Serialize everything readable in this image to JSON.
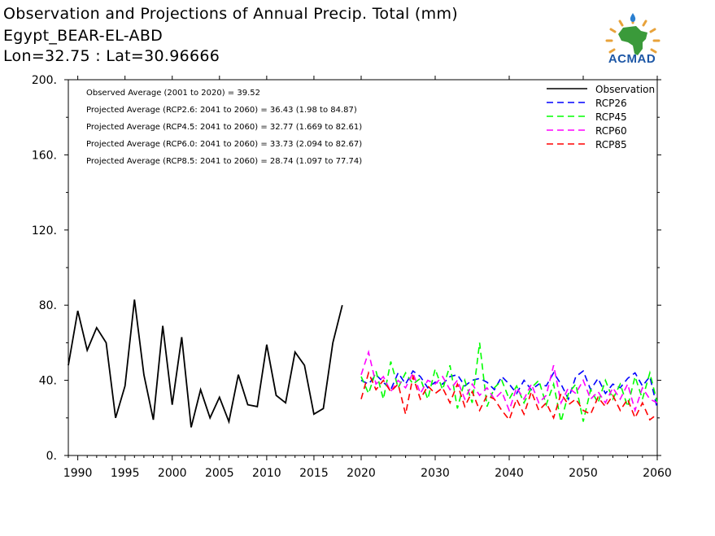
{
  "header": {
    "title": "Observation and Projections of Annual Precip. Total (mm)",
    "location": "Egypt_BEAR-EL-ABD",
    "coords": "Lon=32.75 : Lat=30.96666"
  },
  "logo": {
    "text": "ACMAD",
    "colors": {
      "africa": "#3a9a3a",
      "rays": "#e8a23a",
      "text": "#1d57a6",
      "drop": "#2a7fd0"
    }
  },
  "chart_data": {
    "type": "line",
    "title": "Observation and Projections of Annual Precip. Total (mm)",
    "xlabel": "",
    "ylabel": "",
    "xlim": [
      1989,
      2060
    ],
    "ylim": [
      0,
      200
    ],
    "x_ticks": [
      "1990",
      "1995",
      "2000",
      "2005",
      "2010",
      "2015",
      "2020",
      "2030",
      "2040",
      "2050",
      "2060"
    ],
    "y_ticks": [
      "0.",
      "40.",
      "80.",
      "120.",
      "160.",
      "200."
    ],
    "grid": false,
    "legend_position": "top-right",
    "annotations": [
      "Observed Average (2001 to 2020) = 39.52",
      "Projected Average (RCP2.6: 2041 to 2060) = 36.43 (1.98 to 84.87)",
      "Projected Average (RCP4.5: 2041 to 2060) = 32.77 (1.669 to 82.61)",
      "Projected Average (RCP6.0: 2041 to 2060) = 33.73 (2.094 to 82.67)",
      "Projected Average (RCP8.5: 2041 to 2060) = 28.74 (1.097 to 77.74)"
    ],
    "series": [
      {
        "name": "Observation",
        "color": "#000000",
        "dashed": false,
        "x": [
          1989,
          1990,
          1991,
          1992,
          1993,
          1994,
          1995,
          1996,
          1997,
          1998,
          1999,
          2000,
          2001,
          2002,
          2003,
          2004,
          2005,
          2006,
          2007,
          2008,
          2009,
          2010,
          2011,
          2012,
          2013,
          2014,
          2015,
          2016,
          2017,
          2018,
          2019,
          2020
        ],
        "values": [
          48,
          77,
          56,
          68,
          60,
          20,
          37,
          83,
          43,
          19,
          69,
          27,
          63,
          15,
          35,
          20,
          31,
          18,
          43,
          27,
          26,
          59,
          32,
          28,
          55,
          48,
          22,
          25,
          60,
          80,
          null,
          null
        ]
      },
      {
        "name": "RCP26",
        "color": "#0000ff",
        "dashed": true,
        "x": [
          2020,
          2021,
          2022,
          2023,
          2024,
          2025,
          2026,
          2027,
          2028,
          2029,
          2030,
          2031,
          2032,
          2033,
          2034,
          2035,
          2036,
          2037,
          2038,
          2039,
          2040,
          2041,
          2042,
          2043,
          2044,
          2045,
          2046,
          2047,
          2048,
          2049,
          2050,
          2051,
          2052,
          2053,
          2054,
          2055,
          2056,
          2057,
          2058,
          2059,
          2060
        ],
        "values": [
          40,
          38,
          43,
          39,
          35,
          44,
          38,
          45,
          42,
          36,
          39,
          38,
          42,
          43,
          37,
          40,
          41,
          39,
          35,
          42,
          38,
          33,
          40,
          35,
          38,
          37,
          44,
          38,
          30,
          42,
          45,
          35,
          41,
          33,
          38,
          36,
          41,
          44,
          37,
          42,
          25
        ]
      },
      {
        "name": "RCP45",
        "color": "#00ff00",
        "dashed": true,
        "x": [
          2020,
          2021,
          2022,
          2023,
          2024,
          2025,
          2026,
          2027,
          2028,
          2029,
          2030,
          2031,
          2032,
          2033,
          2034,
          2035,
          2036,
          2037,
          2038,
          2039,
          2040,
          2041,
          2042,
          2043,
          2044,
          2045,
          2046,
          2047,
          2048,
          2049,
          2050,
          2051,
          2052,
          2053,
          2054,
          2055,
          2056,
          2057,
          2058,
          2059,
          2060
        ],
        "values": [
          42,
          33,
          45,
          30,
          50,
          36,
          44,
          38,
          41,
          30,
          46,
          35,
          48,
          25,
          40,
          28,
          60,
          26,
          36,
          40,
          30,
          37,
          28,
          36,
          40,
          27,
          38,
          18,
          33,
          38,
          18,
          35,
          28,
          40,
          30,
          38,
          26,
          42,
          30,
          44,
          28
        ]
      },
      {
        "name": "RCP60",
        "color": "#ff00ff",
        "dashed": true,
        "x": [
          2020,
          2021,
          2022,
          2023,
          2024,
          2025,
          2026,
          2027,
          2028,
          2029,
          2030,
          2031,
          2032,
          2033,
          2034,
          2035,
          2036,
          2037,
          2038,
          2039,
          2040,
          2041,
          2042,
          2043,
          2044,
          2045,
          2046,
          2047,
          2048,
          2049,
          2050,
          2051,
          2052,
          2053,
          2054,
          2055,
          2056,
          2057,
          2058,
          2059,
          2060
        ],
        "values": [
          43,
          55,
          38,
          42,
          34,
          40,
          36,
          44,
          33,
          40,
          38,
          42,
          35,
          40,
          30,
          38,
          32,
          36,
          30,
          34,
          24,
          36,
          30,
          38,
          28,
          32,
          48,
          28,
          36,
          33,
          40,
          30,
          34,
          28,
          36,
          30,
          38,
          24,
          36,
          30,
          28
        ]
      },
      {
        "name": "RCP85",
        "color": "#ff0000",
        "dashed": true,
        "x": [
          2020,
          2021,
          2022,
          2023,
          2024,
          2025,
          2026,
          2027,
          2028,
          2029,
          2030,
          2031,
          2032,
          2033,
          2034,
          2035,
          2036,
          2037,
          2038,
          2039,
          2040,
          2041,
          2042,
          2043,
          2044,
          2045,
          2046,
          2047,
          2048,
          2049,
          2050,
          2051,
          2052,
          2053,
          2054,
          2055,
          2056,
          2057,
          2058,
          2059,
          2060
        ],
        "values": [
          30,
          44,
          35,
          40,
          34,
          38,
          22,
          42,
          30,
          37,
          33,
          36,
          28,
          38,
          26,
          34,
          24,
          32,
          30,
          24,
          19,
          30,
          22,
          34,
          24,
          28,
          20,
          33,
          27,
          30,
          24,
          22,
          31,
          26,
          32,
          24,
          30,
          20,
          28,
          19,
          22
        ]
      }
    ]
  }
}
